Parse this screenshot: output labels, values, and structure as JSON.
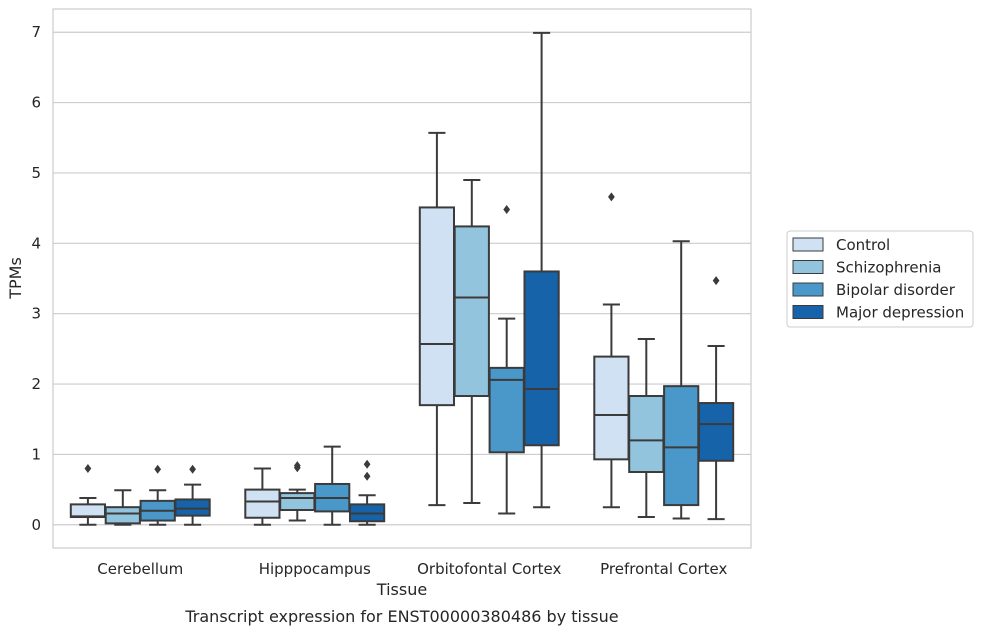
{
  "chart_data": {
    "type": "box",
    "title": "",
    "caption": "Transcript expression for ENST00000380486 by tissue",
    "xlabel": "Tissue",
    "ylabel": "TPMs",
    "ylim": [
      -0.33,
      7.33
    ],
    "yticks": [
      0,
      1,
      2,
      3,
      4,
      5,
      6,
      7
    ],
    "grid": "y",
    "legend": "right",
    "categories": [
      "Cerebellum",
      "Hipppocampus",
      "Orbitofontal Cortex",
      "Prefrontal Cortex"
    ],
    "series": [
      {
        "name": "Control",
        "color": "#cfe1f2",
        "boxes": [
          {
            "min": 0.0,
            "q1": 0.11,
            "median": 0.12,
            "q3": 0.29,
            "max": 0.38,
            "outliers": [
              0.8
            ]
          },
          {
            "min": 0.0,
            "q1": 0.1,
            "median": 0.33,
            "q3": 0.5,
            "max": 0.8,
            "outliers": []
          },
          {
            "min": 0.28,
            "q1": 1.7,
            "median": 2.57,
            "q3": 4.51,
            "max": 5.57,
            "outliers": []
          },
          {
            "min": 0.25,
            "q1": 0.93,
            "median": 1.56,
            "q3": 2.39,
            "max": 3.13,
            "outliers": [
              4.66
            ]
          }
        ]
      },
      {
        "name": "Schizophrenia",
        "color": "#93c4de",
        "boxes": [
          {
            "min": 0.0,
            "q1": 0.02,
            "median": 0.16,
            "q3": 0.25,
            "max": 0.49,
            "outliers": []
          },
          {
            "min": 0.06,
            "q1": 0.21,
            "median": 0.38,
            "q3": 0.45,
            "max": 0.5,
            "outliers": [
              0.81,
              0.84
            ]
          },
          {
            "min": 0.31,
            "q1": 1.83,
            "median": 3.23,
            "q3": 4.24,
            "max": 4.9,
            "outliers": []
          },
          {
            "min": 0.11,
            "q1": 0.75,
            "median": 1.2,
            "q3": 1.83,
            "max": 2.64,
            "outliers": []
          }
        ]
      },
      {
        "name": "Bipolar disorder",
        "color": "#4a98c9",
        "boxes": [
          {
            "min": 0.0,
            "q1": 0.06,
            "median": 0.2,
            "q3": 0.34,
            "max": 0.49,
            "outliers": [
              0.79
            ]
          },
          {
            "min": 0.0,
            "q1": 0.19,
            "median": 0.38,
            "q3": 0.58,
            "max": 1.11,
            "outliers": []
          },
          {
            "min": 0.16,
            "q1": 1.03,
            "median": 2.06,
            "q3": 2.23,
            "max": 2.93,
            "outliers": [
              4.48
            ]
          },
          {
            "min": 0.09,
            "q1": 0.28,
            "median": 1.1,
            "q3": 1.97,
            "max": 4.03,
            "outliers": []
          }
        ]
      },
      {
        "name": "Major depression",
        "color": "#1763aa",
        "boxes": [
          {
            "min": 0.0,
            "q1": 0.13,
            "median": 0.23,
            "q3": 0.36,
            "max": 0.57,
            "outliers": [
              0.79
            ]
          },
          {
            "min": 0.0,
            "q1": 0.05,
            "median": 0.16,
            "q3": 0.29,
            "max": 0.42,
            "outliers": [
              0.69,
              0.86
            ]
          },
          {
            "min": 0.25,
            "q1": 1.13,
            "median": 1.93,
            "q3": 3.6,
            "max": 6.99,
            "outliers": []
          },
          {
            "min": 0.08,
            "q1": 0.91,
            "median": 1.43,
            "q3": 1.73,
            "max": 2.54,
            "outliers": [
              3.47
            ]
          }
        ]
      }
    ]
  },
  "colors": {
    "grid": "#cccccc",
    "frame": "#cccccc",
    "line": "#3b3b3b"
  }
}
